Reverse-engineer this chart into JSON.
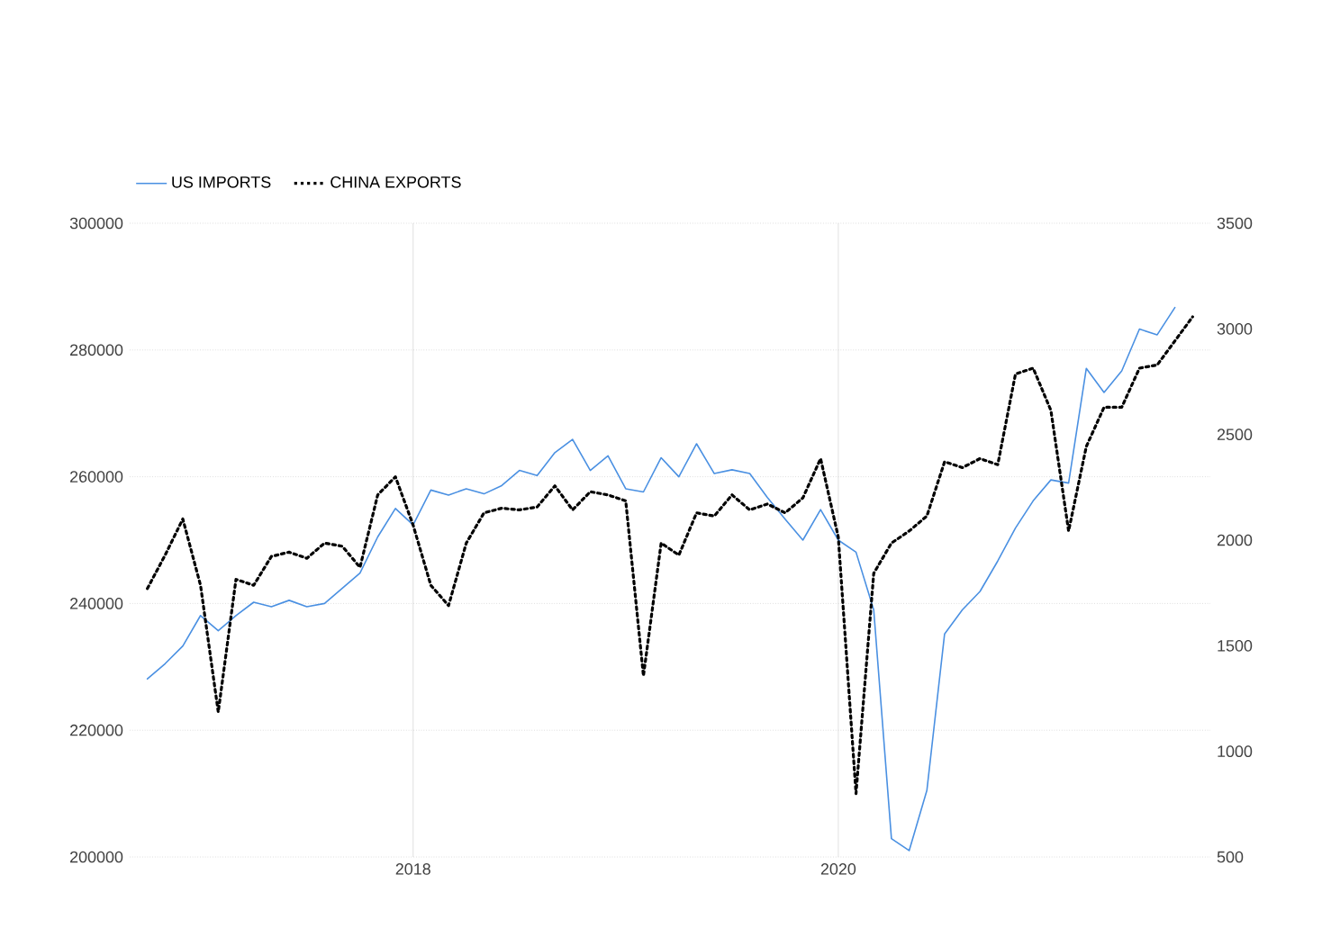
{
  "chart_data": {
    "type": "line",
    "x": [
      "2016-10",
      "2016-11",
      "2016-12",
      "2017-01",
      "2017-02",
      "2017-03",
      "2017-04",
      "2017-05",
      "2017-06",
      "2017-07",
      "2017-08",
      "2017-09",
      "2017-10",
      "2017-11",
      "2017-12",
      "2018-01",
      "2018-02",
      "2018-03",
      "2018-04",
      "2018-05",
      "2018-06",
      "2018-07",
      "2018-08",
      "2018-09",
      "2018-10",
      "2018-11",
      "2018-12",
      "2019-01",
      "2019-02",
      "2019-03",
      "2019-04",
      "2019-05",
      "2019-06",
      "2019-07",
      "2019-08",
      "2019-09",
      "2019-10",
      "2019-11",
      "2019-12",
      "2020-01",
      "2020-02",
      "2020-03",
      "2020-04",
      "2020-05",
      "2020-06",
      "2020-07",
      "2020-08",
      "2020-09",
      "2020-10",
      "2020-11",
      "2020-12",
      "2021-01",
      "2021-02",
      "2021-03",
      "2021-04",
      "2021-05",
      "2021-06",
      "2021-07",
      "2021-08",
      "2021-09"
    ],
    "series": [
      {
        "name": "US IMPORTS",
        "color": "#4a90e2",
        "line_style": "solid",
        "values": [
          228100,
          230500,
          233300,
          238100,
          235700,
          238100,
          240200,
          239500,
          240500,
          239500,
          240000,
          242400,
          244800,
          250500,
          255000,
          252400,
          257900,
          257100,
          258100,
          257300,
          258600,
          261000,
          260200,
          263800,
          265900,
          261000,
          263300,
          258100,
          257600,
          263000,
          260000,
          265200,
          260500,
          261100,
          260500,
          256700,
          253300,
          250000,
          254800,
          250000,
          248100,
          239000,
          202900,
          201000,
          210500,
          235200,
          239000,
          241900,
          246700,
          251900,
          256200,
          259500,
          259000,
          277100,
          273300,
          276700,
          283300,
          282400,
          286700,
          null
        ]
      },
      {
        "name": "CHINA EXPORTS",
        "color": "#000000",
        "line_style": "dotted",
        "axis": "y2",
        "values": [
          1771,
          1929,
          2100,
          1786,
          1186,
          1814,
          1786,
          1923,
          1943,
          1914,
          1986,
          1971,
          1871,
          2214,
          2300,
          2071,
          1786,
          1690,
          1986,
          2129,
          2151,
          2143,
          2157,
          2257,
          2143,
          2229,
          2214,
          2186,
          1357,
          1986,
          1929,
          2129,
          2114,
          2214,
          2143,
          2171,
          2129,
          2200,
          2386,
          2014,
          800,
          1843,
          1986,
          2043,
          2114,
          2371,
          2343,
          2386,
          2357,
          2786,
          2814,
          2614,
          2043,
          2443,
          2629,
          2629,
          2814,
          2829,
          2943,
          3057
        ]
      }
    ],
    "xlim": [
      "2016-09",
      "2021-10"
    ],
    "xticks": [
      "2018",
      "2020"
    ],
    "ylim": [
      200000,
      300000
    ],
    "yticks": [
      200000,
      220000,
      240000,
      260000,
      280000,
      300000
    ],
    "y2lim": [
      500,
      3500
    ],
    "y2ticks": [
      500,
      1000,
      1500,
      2000,
      2500,
      3000,
      3500
    ],
    "grid": true,
    "legend": "top left"
  }
}
